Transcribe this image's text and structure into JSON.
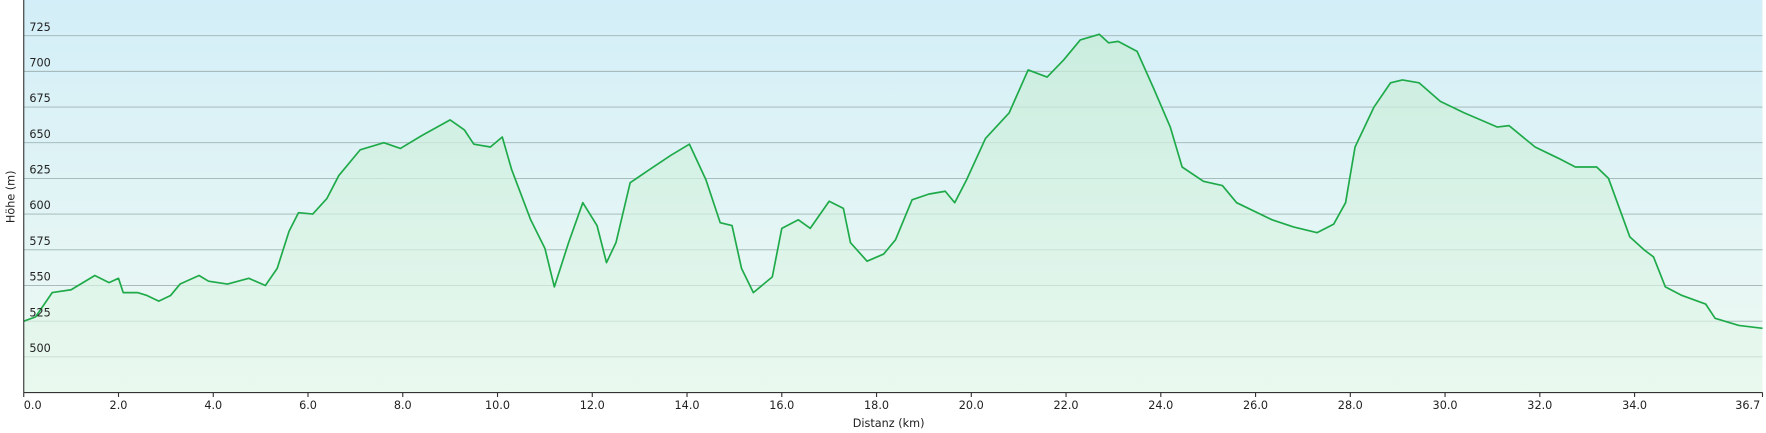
{
  "chart_data": {
    "type": "line",
    "xlabel": "Distanz  (km)",
    "ylabel": "Höhe (m)",
    "color": "#1faa4a",
    "grid": true,
    "x": [
      0,
      0.25,
      0.6,
      1.0,
      1.5,
      1.8,
      2.0,
      2.1,
      2.4,
      2.6,
      2.85,
      3.1,
      3.3,
      3.7,
      3.9,
      4.3,
      4.75,
      5.1,
      5.35,
      5.6,
      5.8,
      6.1,
      6.4,
      6.65,
      7.1,
      7.6,
      7.95,
      8.4,
      9.0,
      9.3,
      9.5,
      9.85,
      10.1,
      10.3,
      10.7,
      11.0,
      11.2,
      11.5,
      11.8,
      12.1,
      12.3,
      12.5,
      12.8,
      13.2,
      13.65,
      14.05,
      14.4,
      14.7,
      14.95,
      15.15,
      15.4,
      15.8,
      16.0,
      16.35,
      16.6,
      17.0,
      17.3,
      17.45,
      17.8,
      18.15,
      18.4,
      18.75,
      19.1,
      19.45,
      19.65,
      19.9,
      20.3,
      20.8,
      21.2,
      21.6,
      21.95,
      22.3,
      22.7,
      22.9,
      23.1,
      23.5,
      23.85,
      24.2,
      24.45,
      24.9,
      25.3,
      25.6,
      26.35,
      26.8,
      27.3,
      27.65,
      27.9,
      28.1,
      28.5,
      28.85,
      29.1,
      29.45,
      29.9,
      30.4,
      31.1,
      31.35,
      31.9,
      32.4,
      32.75,
      33.2,
      33.45,
      33.9,
      34.2,
      34.4,
      34.65,
      35.0,
      35.5,
      35.7,
      36.2,
      36.7
    ],
    "values": [
      525,
      528,
      545,
      547,
      557,
      552,
      555,
      545,
      545,
      543,
      539,
      543,
      551,
      557,
      553,
      551,
      555,
      550,
      562,
      588,
      601,
      600,
      611,
      627,
      645,
      650,
      646,
      655,
      666,
      659,
      649,
      647,
      654,
      631,
      596,
      576,
      549,
      580,
      608,
      592,
      566,
      580,
      622,
      631,
      641,
      649,
      624,
      594,
      592,
      562,
      545,
      556,
      590,
      596,
      590,
      609,
      604,
      580,
      567,
      572,
      582,
      610,
      614,
      616,
      608,
      624,
      653,
      671,
      701,
      696,
      708,
      722,
      726,
      720,
      721,
      714,
      688,
      661,
      633,
      623,
      620,
      608,
      596,
      591,
      587,
      593,
      608,
      647,
      675,
      692,
      694,
      692,
      679,
      671,
      661,
      662,
      647,
      639,
      633,
      633,
      625,
      584,
      575,
      570,
      549,
      543,
      537,
      527,
      522,
      520
    ],
    "xlim": [
      0,
      36.7
    ],
    "ylim": [
      475,
      750
    ],
    "xticks": [
      {
        "value": 0,
        "label": "0.0"
      },
      {
        "value": 2,
        "label": "2.0"
      },
      {
        "value": 4,
        "label": "4.0"
      },
      {
        "value": 6,
        "label": "6.0"
      },
      {
        "value": 8,
        "label": "8.0"
      },
      {
        "value": 10,
        "label": "10.0"
      },
      {
        "value": 12,
        "label": "12.0"
      },
      {
        "value": 14,
        "label": "14.0"
      },
      {
        "value": 16,
        "label": "16.0"
      },
      {
        "value": 18,
        "label": "18.0"
      },
      {
        "value": 20,
        "label": "20.0"
      },
      {
        "value": 22,
        "label": "22.0"
      },
      {
        "value": 24,
        "label": "24.0"
      },
      {
        "value": 26,
        "label": "26.0"
      },
      {
        "value": 28,
        "label": "28.0"
      },
      {
        "value": 30,
        "label": "30.0"
      },
      {
        "value": 32,
        "label": "32.0"
      },
      {
        "value": 34,
        "label": "34.0"
      },
      36.7
    ],
    "yticks": [
      500,
      525,
      550,
      575,
      600,
      625,
      650,
      675,
      700,
      725
    ]
  }
}
